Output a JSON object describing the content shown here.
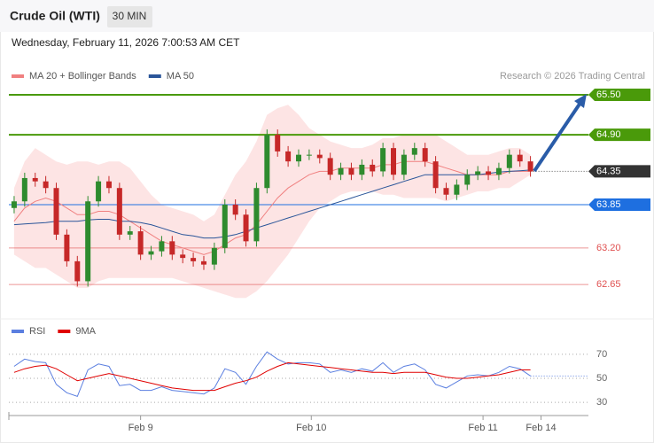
{
  "header": {
    "title": "Crude Oil (WTI)",
    "timeframe": "30 MIN",
    "datetime": "Wednesday, February 11, 2026 7:00:53 AM CET"
  },
  "chart_data": [
    {
      "type": "candlestick",
      "credit": "Research © 2026 Trading Central",
      "xlim": [
        0,
        55
      ],
      "ylim": [
        62.16,
        65.66
      ],
      "up_color": "#2e8b2e",
      "down_color": "#c62828",
      "open": [
        63.8,
        63.9,
        64.25,
        64.2,
        64.1,
        63.4,
        63.0,
        62.7,
        63.9,
        64.2,
        64.1,
        63.4,
        63.45,
        63.1,
        63.15,
        63.3,
        63.1,
        63.05,
        63.0,
        62.95,
        63.2,
        63.85,
        63.7,
        63.3,
        64.1,
        64.9,
        64.65,
        64.5,
        64.6,
        64.6,
        64.55,
        64.3,
        64.4,
        64.3,
        64.45,
        64.35,
        64.7,
        64.3,
        64.6,
        64.7,
        64.5,
        64.1,
        64.0,
        64.15,
        64.3,
        64.35,
        64.3,
        64.4,
        64.6,
        64.5
      ],
      "high": [
        63.98,
        64.33,
        64.33,
        64.28,
        64.18,
        63.48,
        63.08,
        63.98,
        64.28,
        64.28,
        64.18,
        63.53,
        63.53,
        63.23,
        63.38,
        63.38,
        63.18,
        63.13,
        63.08,
        63.28,
        63.93,
        63.93,
        63.78,
        64.18,
        64.98,
        64.98,
        64.73,
        64.68,
        64.68,
        64.68,
        64.63,
        64.48,
        64.48,
        64.53,
        64.53,
        64.78,
        64.78,
        64.68,
        64.78,
        64.78,
        64.58,
        64.18,
        64.23,
        64.38,
        64.43,
        64.43,
        64.48,
        64.68,
        64.68,
        64.58
      ],
      "low": [
        63.72,
        63.82,
        64.12,
        64.02,
        63.32,
        62.92,
        62.62,
        62.62,
        63.82,
        64.02,
        63.32,
        63.32,
        63.02,
        63.02,
        63.07,
        63.02,
        62.97,
        62.92,
        62.87,
        62.87,
        63.12,
        63.62,
        63.22,
        63.22,
        64.02,
        64.57,
        64.42,
        64.42,
        64.52,
        64.47,
        64.22,
        64.22,
        64.22,
        64.22,
        64.27,
        64.27,
        64.22,
        64.22,
        64.52,
        64.42,
        64.02,
        63.92,
        63.92,
        64.07,
        64.22,
        64.22,
        64.22,
        64.32,
        64.42,
        64.27
      ],
      "close": [
        63.9,
        64.25,
        64.2,
        64.1,
        63.4,
        63.0,
        62.7,
        63.9,
        64.2,
        64.1,
        63.4,
        63.45,
        63.1,
        63.15,
        63.3,
        63.1,
        63.05,
        63.0,
        62.95,
        63.2,
        63.85,
        63.7,
        63.3,
        64.1,
        64.9,
        64.65,
        64.5,
        64.6,
        64.6,
        64.55,
        64.3,
        64.4,
        64.3,
        64.45,
        64.35,
        64.7,
        64.3,
        64.6,
        64.7,
        64.5,
        64.1,
        64.0,
        64.15,
        64.3,
        64.35,
        64.3,
        64.4,
        64.6,
        64.5,
        64.35
      ],
      "series": [
        {
          "name": "MA 20 + Bollinger Bands",
          "color": "#f08080",
          "band_color": "#fde4e4",
          "values": [
            63.6,
            63.8,
            63.9,
            63.95,
            63.9,
            63.8,
            63.7,
            63.7,
            63.75,
            63.75,
            63.7,
            63.6,
            63.5,
            63.4,
            63.3,
            63.25,
            63.2,
            63.15,
            63.1,
            63.15,
            63.25,
            63.35,
            63.4,
            63.55,
            63.75,
            63.95,
            64.1,
            64.2,
            64.3,
            64.35,
            64.35,
            64.4,
            64.4,
            64.4,
            64.4,
            64.45,
            64.45,
            64.5,
            64.5,
            64.5,
            64.45,
            64.4,
            64.35,
            64.3,
            64.3,
            64.3,
            64.3,
            64.35,
            64.35,
            64.35
          ],
          "upper": [
            64.1,
            64.5,
            64.7,
            64.6,
            64.5,
            64.45,
            64.5,
            64.5,
            64.45,
            64.5,
            64.5,
            64.4,
            64.2,
            64.0,
            63.85,
            63.8,
            63.75,
            63.7,
            63.6,
            63.7,
            64.0,
            64.3,
            64.5,
            64.8,
            65.2,
            65.3,
            65.35,
            65.2,
            65.0,
            64.9,
            64.8,
            64.75,
            64.7,
            64.7,
            64.75,
            64.85,
            64.85,
            64.9,
            64.9,
            64.9,
            64.9,
            64.8,
            64.7,
            64.6,
            64.6,
            64.6,
            64.65,
            64.7,
            64.7,
            64.6
          ],
          "lower": [
            63.1,
            63.0,
            62.9,
            62.9,
            62.8,
            62.7,
            62.6,
            62.6,
            62.7,
            62.75,
            62.75,
            62.75,
            62.75,
            62.75,
            62.75,
            62.75,
            62.7,
            62.65,
            62.6,
            62.55,
            62.5,
            62.45,
            62.45,
            62.55,
            62.7,
            62.9,
            63.1,
            63.35,
            63.6,
            63.8,
            63.9,
            64.0,
            64.05,
            64.05,
            64.05,
            64.0,
            64.0,
            63.95,
            63.95,
            63.95,
            63.95,
            63.9,
            63.95,
            64.0,
            64.05,
            64.05,
            64.1,
            64.1,
            64.2,
            64.3
          ]
        },
        {
          "name": "MA 50",
          "color": "#2a5599",
          "values": [
            63.55,
            63.56,
            63.57,
            63.58,
            63.6,
            63.6,
            63.6,
            63.62,
            63.63,
            63.63,
            63.6,
            63.6,
            63.58,
            63.55,
            63.5,
            63.45,
            63.4,
            63.38,
            63.35,
            63.35,
            63.37,
            63.4,
            63.45,
            63.5,
            63.55,
            63.6,
            63.65,
            63.7,
            63.75,
            63.8,
            63.85,
            63.9,
            63.95,
            64.0,
            64.05,
            64.1,
            64.15,
            64.2,
            64.25,
            64.3,
            64.3,
            64.3,
            64.3,
            64.3,
            64.3,
            64.32,
            64.34,
            64.35,
            64.36,
            64.37
          ]
        }
      ],
      "levels": [
        {
          "value": 65.5,
          "label": "65.50",
          "color": "#4a9a0a",
          "style": "box"
        },
        {
          "value": 64.9,
          "label": "64.90",
          "color": "#4a9a0a",
          "style": "box"
        },
        {
          "value": 64.35,
          "label": "64.35",
          "color": "#333333",
          "style": "current"
        },
        {
          "value": 63.85,
          "label": "63.85",
          "color": "#1e6fe0",
          "style": "box"
        },
        {
          "value": 63.2,
          "label": "63.20",
          "color": "#e05050",
          "style": "text"
        },
        {
          "value": 62.65,
          "label": "62.65",
          "color": "#e05050",
          "style": "text"
        }
      ]
    },
    {
      "type": "line",
      "xlim": [
        0,
        55
      ],
      "ylim": [
        22,
        81
      ],
      "yticks": [
        70,
        50,
        30
      ],
      "grid": true,
      "xticks": [
        {
          "value": 12.5,
          "label": "Feb 9"
        },
        {
          "value": 28.7,
          "label": "Feb 10"
        },
        {
          "value": 45,
          "label": "Feb 11"
        },
        {
          "value": 50.5,
          "label": "Feb 14"
        }
      ],
      "series": [
        {
          "name": "RSI",
          "color": "#5b7fe0",
          "extend": true,
          "values": [
            60,
            66,
            64,
            63,
            45,
            38,
            35,
            57,
            62,
            60,
            44,
            45,
            40,
            40,
            43,
            40,
            39,
            38,
            37,
            42,
            58,
            55,
            45,
            60,
            72,
            66,
            62,
            63,
            63,
            62,
            55,
            57,
            55,
            58,
            56,
            63,
            55,
            60,
            62,
            57,
            45,
            42,
            47,
            52,
            53,
            52,
            55,
            60,
            58,
            52
          ]
        },
        {
          "name": "9MA",
          "color": "#e00000",
          "extend": false,
          "values": [
            55,
            58,
            60,
            61,
            58,
            53,
            48,
            50,
            52,
            54,
            52,
            50,
            48,
            46,
            44,
            42,
            41,
            40,
            40,
            40,
            43,
            46,
            48,
            51,
            56,
            60,
            63,
            62,
            61,
            60,
            59,
            58,
            57,
            56,
            55,
            55,
            54,
            55,
            55,
            55,
            53,
            51,
            50,
            50,
            51,
            52,
            53,
            55,
            57,
            57
          ]
        }
      ]
    }
  ]
}
